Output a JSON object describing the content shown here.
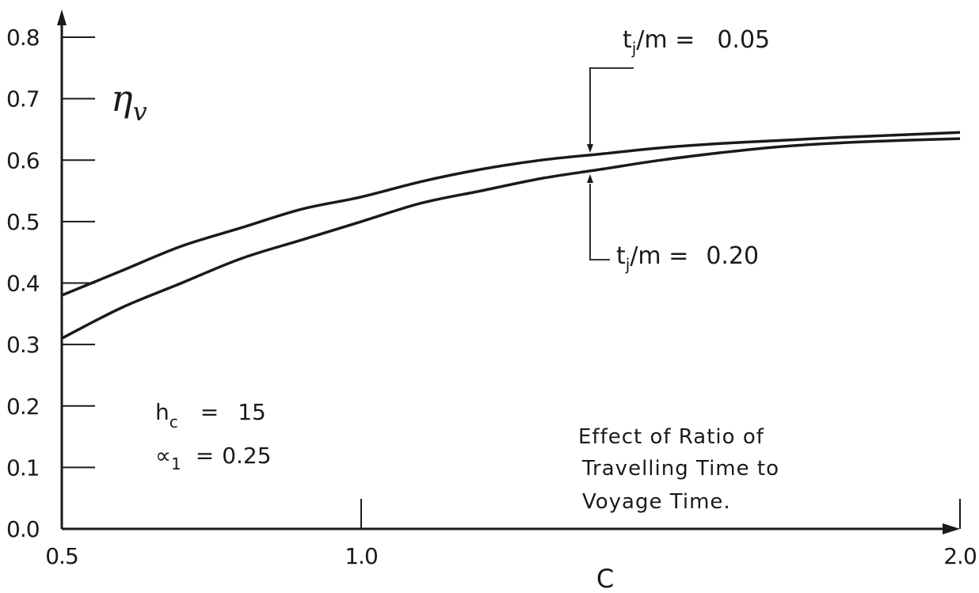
{
  "chart_data": {
    "type": "line",
    "title": "",
    "xlabel": "C",
    "ylabel": "η_v",
    "xlim": [
      0.5,
      2.0
    ],
    "ylim": [
      0.0,
      0.8
    ],
    "x_ticks": [
      {
        "value": 0.5,
        "label": "0.5"
      },
      {
        "value": 1.0,
        "label": "1.0"
      },
      {
        "value": 2.0,
        "label": "2.0"
      }
    ],
    "y_ticks": [
      {
        "value": 0.0,
        "label": "0.0"
      },
      {
        "value": 0.1,
        "label": "0.1"
      },
      {
        "value": 0.2,
        "label": "0.2"
      },
      {
        "value": 0.3,
        "label": "0.3"
      },
      {
        "value": 0.4,
        "label": "0.4"
      },
      {
        "value": 0.5,
        "label": "0.5"
      },
      {
        "value": 0.6,
        "label": "0.6"
      },
      {
        "value": 0.7,
        "label": "0.7"
      },
      {
        "value": 0.8,
        "label": "0.8"
      }
    ],
    "grid": false,
    "series": [
      {
        "name": "t_j/m = 0.05",
        "x": [
          0.5,
          0.6,
          0.7,
          0.8,
          0.9,
          1.0,
          1.1,
          1.2,
          1.3,
          1.4,
          1.5,
          1.6,
          1.7,
          1.8,
          1.9,
          2.0
        ],
        "y": [
          0.38,
          0.42,
          0.46,
          0.49,
          0.52,
          0.54,
          0.565,
          0.585,
          0.6,
          0.61,
          0.62,
          0.627,
          0.632,
          0.637,
          0.641,
          0.645
        ]
      },
      {
        "name": "t_j/m = 0.20",
        "x": [
          0.5,
          0.6,
          0.7,
          0.8,
          0.9,
          1.0,
          1.1,
          1.2,
          1.3,
          1.4,
          1.5,
          1.6,
          1.7,
          1.8,
          1.9,
          2.0
        ],
        "y": [
          0.31,
          0.36,
          0.4,
          0.44,
          0.47,
          0.5,
          0.53,
          0.55,
          0.57,
          0.585,
          0.6,
          0.612,
          0.622,
          0.628,
          0.632,
          0.635
        ]
      }
    ],
    "annotations": {
      "upper_curve_label": {
        "main": "t",
        "sub": "j",
        "rest": "/m =",
        "value": "0.05"
      },
      "lower_curve_label": {
        "main": "t",
        "sub": "j",
        "rest": "/m =",
        "value": "0.20"
      },
      "params": [
        {
          "symbol": "h",
          "sub": "c",
          "eq": "=",
          "value": "15"
        },
        {
          "symbol": "∝",
          "sub": "1",
          "eq": "=",
          "value": "0.25"
        }
      ],
      "caption_lines": [
        "Effect of Ratio of",
        "Travelling Time to",
        "Voyage Time."
      ]
    }
  }
}
